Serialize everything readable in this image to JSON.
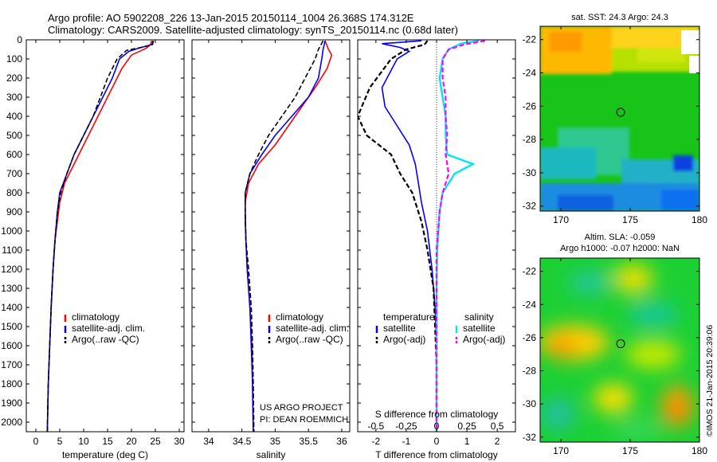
{
  "header": {
    "line1": "Argo profile: AO 5902208_226 13-Jan-2015 20150114_1004 26.368S 174.312E",
    "line2": "Climatology: CARS2009. Satellite-adjusted climatology: synTS_20150114.nc (0.68d later)"
  },
  "credit": {
    "project": "US ARGO PROJECT",
    "pi": "PI: DEAN ROEMMICH",
    "watermark": "©IMOS 21-Jan-2015 20:39:06"
  },
  "colors": {
    "climatology": "#ff0000",
    "satellite": "#0000ff",
    "argo": "#000000",
    "satellite_s": "#00e5ee",
    "argo_s": "#ff00ff"
  },
  "chart_data": [
    {
      "type": "line",
      "id": "temperature",
      "xlabel": "temperature (deg C)",
      "ylabel": "",
      "xlim": [
        -2,
        31
      ],
      "ylim": [
        2050,
        0
      ],
      "xticks": [
        0,
        5,
        10,
        15,
        20,
        25,
        30
      ],
      "yticks": [
        0,
        100,
        200,
        300,
        400,
        500,
        600,
        700,
        800,
        900,
        1000,
        1100,
        1200,
        1300,
        1400,
        1500,
        1600,
        1700,
        1800,
        1900,
        2000
      ],
      "legend": [
        "climatology",
        "satellite-adj. clim.",
        "Argo(..raw -QC)"
      ],
      "series": [
        {
          "name": "climatology",
          "points": [
            [
              24.2,
              5
            ],
            [
              24,
              25
            ],
            [
              23,
              45
            ],
            [
              20,
              80
            ],
            [
              18,
              150
            ],
            [
              16,
              250
            ],
            [
              14,
              350
            ],
            [
              12,
              450
            ],
            [
              10,
              550
            ],
            [
              8,
              650
            ],
            [
              6,
              750
            ],
            [
              5,
              850
            ],
            [
              4.5,
              950
            ],
            [
              4,
              1050
            ],
            [
              3.6,
              1200
            ],
            [
              3.2,
              1400
            ],
            [
              2.9,
              1600
            ],
            [
              2.6,
              1800
            ],
            [
              2.4,
              2050
            ]
          ]
        },
        {
          "name": "satellite-adj. clim.",
          "points": [
            [
              24.5,
              5
            ],
            [
              24.3,
              25
            ],
            [
              22,
              40
            ],
            [
              19.5,
              60
            ],
            [
              17.5,
              100
            ],
            [
              16,
              200
            ],
            [
              14,
              300
            ],
            [
              12,
              400
            ],
            [
              10,
              500
            ],
            [
              8,
              600
            ],
            [
              6.5,
              700
            ],
            [
              5,
              800
            ],
            [
              4.5,
              900
            ],
            [
              4,
              1050
            ],
            [
              3.6,
              1200
            ],
            [
              3.2,
              1400
            ],
            [
              2.9,
              1600
            ],
            [
              2.6,
              1800
            ],
            [
              2.4,
              2050
            ]
          ]
        },
        {
          "name": "Argo(..raw -QC)",
          "points": [
            [
              24.6,
              5
            ],
            [
              24.4,
              25
            ],
            [
              22,
              40
            ],
            [
              19,
              55
            ],
            [
              17,
              100
            ],
            [
              15,
              200
            ],
            [
              13.5,
              300
            ],
            [
              12,
              400
            ],
            [
              10,
              500
            ],
            [
              8,
              600
            ],
            [
              6.5,
              700
            ],
            [
              5.2,
              800
            ],
            [
              4.5,
              900
            ],
            [
              4,
              1050
            ],
            [
              3.6,
              1200
            ],
            [
              3.2,
              1400
            ],
            [
              2.9,
              1600
            ],
            [
              2.6,
              1800
            ],
            [
              2.4,
              2050
            ]
          ]
        }
      ]
    },
    {
      "type": "line",
      "id": "salinity",
      "xlabel": "salinity",
      "ylabel": "",
      "xlim": [
        33.75,
        36.12
      ],
      "ylim": [
        2050,
        0
      ],
      "xticks": [
        34,
        34.5,
        35,
        35.5,
        36
      ],
      "yticks": [
        0,
        100,
        200,
        300,
        400,
        500,
        600,
        700,
        800,
        900,
        1000,
        1100,
        1200,
        1300,
        1400,
        1500,
        1600,
        1700,
        1800,
        1900,
        2000
      ],
      "legend": [
        "climatology",
        "satellite-adj. clim.",
        "Argo(..raw -QC)"
      ],
      "series": [
        {
          "name": "climatology",
          "points": [
            [
              35.75,
              5
            ],
            [
              35.8,
              50
            ],
            [
              35.85,
              80
            ],
            [
              35.78,
              150
            ],
            [
              35.6,
              250
            ],
            [
              35.4,
              350
            ],
            [
              35.2,
              450
            ],
            [
              35,
              550
            ],
            [
              34.75,
              650
            ],
            [
              34.6,
              750
            ],
            [
              34.55,
              850
            ],
            [
              34.55,
              950
            ],
            [
              34.56,
              1050
            ],
            [
              34.58,
              1200
            ],
            [
              34.62,
              1400
            ],
            [
              34.65,
              1600
            ],
            [
              34.66,
              1800
            ],
            [
              34.67,
              2050
            ]
          ]
        },
        {
          "name": "satellite-adj. clim.",
          "points": [
            [
              35.75,
              5
            ],
            [
              35.72,
              50
            ],
            [
              35.7,
              100
            ],
            [
              35.65,
              200
            ],
            [
              35.5,
              300
            ],
            [
              35.25,
              400
            ],
            [
              35,
              500
            ],
            [
              34.8,
              600
            ],
            [
              34.62,
              700
            ],
            [
              34.55,
              800
            ],
            [
              34.55,
              900
            ],
            [
              34.56,
              1050
            ],
            [
              34.58,
              1200
            ],
            [
              34.62,
              1400
            ],
            [
              34.64,
              1600
            ],
            [
              34.66,
              1800
            ],
            [
              34.67,
              2050
            ]
          ]
        },
        {
          "name": "Argo(..raw -QC)",
          "points": [
            [
              35.72,
              5
            ],
            [
              35.65,
              50
            ],
            [
              35.6,
              100
            ],
            [
              35.45,
              200
            ],
            [
              35.3,
              300
            ],
            [
              35.1,
              400
            ],
            [
              34.9,
              500
            ],
            [
              34.75,
              600
            ],
            [
              34.62,
              700
            ],
            [
              34.55,
              800
            ],
            [
              34.55,
              900
            ],
            [
              34.56,
              1050
            ],
            [
              34.6,
              1200
            ],
            [
              34.64,
              1400
            ],
            [
              34.66,
              1600
            ],
            [
              34.67,
              1800
            ],
            [
              34.68,
              2050
            ]
          ]
        }
      ]
    },
    {
      "type": "line",
      "id": "difference",
      "xlabel": "T difference from climatology",
      "xlabel2": "S difference from climatology",
      "ylim": [
        2050,
        0
      ],
      "xlim": [
        -2.6,
        2.6
      ],
      "xticks": [
        -2,
        -1,
        0,
        1,
        2
      ],
      "xticks_s": [
        "-0.5",
        "-0.25",
        "0",
        "0.25",
        "0.5"
      ],
      "legend_titles": [
        "temperature",
        "salinity"
      ],
      "legend": [
        "satellite",
        "Argo(-adj)",
        "satellite",
        "Argo(-adj)"
      ],
      "series": [
        {
          "name": "satellite",
          "group": "temperature",
          "points": [
            [
              -0.5,
              5
            ],
            [
              -1.8,
              20
            ],
            [
              -1.2,
              40
            ],
            [
              -0.9,
              60
            ],
            [
              -1.3,
              100
            ],
            [
              -1.8,
              250
            ],
            [
              -1.7,
              350
            ],
            [
              -1.3,
              450
            ],
            [
              -0.9,
              550
            ],
            [
              -0.7,
              650
            ],
            [
              -0.6,
              750
            ],
            [
              -0.5,
              850
            ],
            [
              -0.3,
              1000
            ],
            [
              -0.15,
              1200
            ],
            [
              -0.05,
              1400
            ],
            [
              0,
              1600
            ],
            [
              0,
              2050
            ]
          ]
        },
        {
          "name": "Argo(-adj)",
          "group": "temperature",
          "points": [
            [
              -0.3,
              5
            ],
            [
              -0.4,
              25
            ],
            [
              -1,
              50
            ],
            [
              -1.5,
              100
            ],
            [
              -2.2,
              250
            ],
            [
              -2.6,
              400
            ],
            [
              -2.3,
              500
            ],
            [
              -1.5,
              600
            ],
            [
              -1.2,
              700
            ],
            [
              -0.8,
              800
            ],
            [
              -0.5,
              950
            ],
            [
              -0.3,
              1100
            ],
            [
              -0.1,
              1300
            ],
            [
              -0.05,
              1500
            ],
            [
              0,
              1700
            ],
            [
              0,
              2050
            ]
          ]
        },
        {
          "name": "satellite",
          "group": "salinity",
          "points": [
            [
              1.4,
              5
            ],
            [
              0.8,
              20
            ],
            [
              0.4,
              50
            ],
            [
              0.2,
              100
            ],
            [
              0.1,
              200
            ],
            [
              0.2,
              300
            ],
            [
              0.3,
              400
            ],
            [
              0.3,
              500
            ],
            [
              0.35,
              600
            ],
            [
              1.2,
              650
            ],
            [
              0.6,
              700
            ],
            [
              0.2,
              800
            ],
            [
              0.1,
              900
            ],
            [
              0.02,
              1100
            ],
            [
              0,
              1300
            ],
            [
              0,
              1600
            ],
            [
              0,
              2050
            ]
          ]
        },
        {
          "name": "Argo(-adj)",
          "group": "salinity",
          "points": [
            [
              1.6,
              5
            ],
            [
              0.9,
              25
            ],
            [
              0.4,
              50
            ],
            [
              0.2,
              100
            ],
            [
              0.2,
              200
            ],
            [
              0.3,
              300
            ],
            [
              0.3,
              400
            ],
            [
              0.35,
              500
            ],
            [
              0.3,
              600
            ],
            [
              0.4,
              700
            ],
            [
              0.2,
              800
            ],
            [
              0.1,
              900
            ],
            [
              0,
              1100
            ],
            [
              0,
              2050
            ]
          ]
        }
      ]
    },
    {
      "type": "heatmap",
      "id": "sst_map",
      "title": "sat. SST: 24.3  Argo: 24.3",
      "xlim": [
        168.5,
        180
      ],
      "ylim": [
        -32.3,
        -21.2
      ],
      "xticks": [
        170,
        175,
        180
      ],
      "yticks": [
        -22,
        -24,
        -26,
        -28,
        -30,
        -32
      ],
      "marker": [
        174.312,
        -26.368
      ]
    },
    {
      "type": "heatmap",
      "id": "sla_map",
      "title": "Altim. SLA: -0.059",
      "subtitle": "Argo h1000: -0.07 h2000: NaN",
      "xlim": [
        168.5,
        180
      ],
      "ylim": [
        -32.3,
        -21.2
      ],
      "xticks": [
        170,
        175,
        180
      ],
      "yticks": [
        -22,
        -24,
        -26,
        -28,
        -30,
        -32
      ],
      "marker": [
        174.312,
        -26.368
      ]
    }
  ]
}
